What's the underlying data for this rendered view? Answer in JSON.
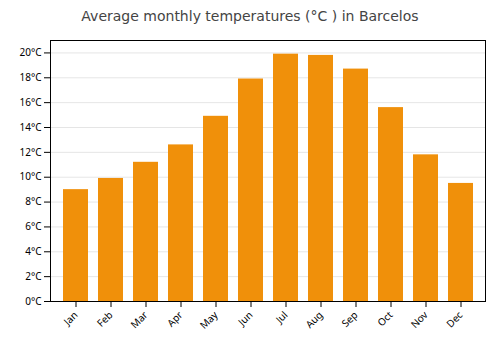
{
  "chart_data": {
    "type": "bar",
    "title": "Average monthly temperatures (°C ) in Barcelos",
    "categories": [
      "Jan",
      "Feb",
      "Mar",
      "Apr",
      "May",
      "Jun",
      "Jul",
      "Aug",
      "Sep",
      "Oct",
      "Nov",
      "Dec"
    ],
    "values": [
      9.0,
      9.9,
      11.2,
      12.6,
      14.9,
      17.9,
      19.9,
      19.8,
      18.7,
      15.6,
      11.8,
      9.5
    ],
    "color": "#F0900A",
    "ylim": [
      0,
      21
    ],
    "yticks": [
      {
        "value": 0,
        "label": "0°C"
      },
      {
        "value": 2,
        "label": "2°C"
      },
      {
        "value": 4,
        "label": "4°C"
      },
      {
        "value": 6,
        "label": "6°C"
      },
      {
        "value": 8,
        "label": "8°C"
      },
      {
        "value": 10,
        "label": "10°C"
      },
      {
        "value": 12,
        "label": "12°C"
      },
      {
        "value": 14,
        "label": "14°C"
      },
      {
        "value": 16,
        "label": "16°C"
      },
      {
        "value": 18,
        "label": "18°C"
      },
      {
        "value": 20,
        "label": "20°C"
      }
    ],
    "grid": true
  }
}
